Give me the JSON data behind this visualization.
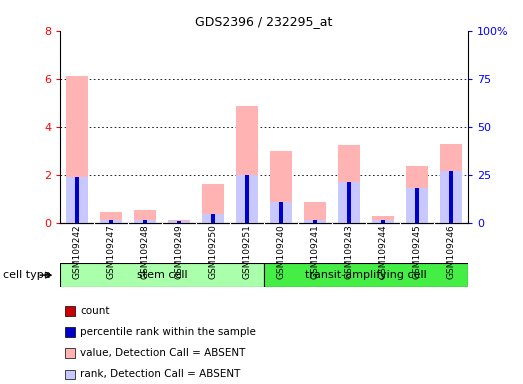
{
  "title": "GDS2396 / 232295_at",
  "samples": [
    "GSM109242",
    "GSM109247",
    "GSM109248",
    "GSM109249",
    "GSM109250",
    "GSM109251",
    "GSM109240",
    "GSM109241",
    "GSM109243",
    "GSM109244",
    "GSM109245",
    "GSM109246"
  ],
  "count_values": [
    0.07,
    0.0,
    0.0,
    0.0,
    0.0,
    0.07,
    0.07,
    0.04,
    0.07,
    0.0,
    0.0,
    0.07
  ],
  "percentile_values": [
    24.0,
    1.5,
    1.5,
    1.0,
    4.5,
    25.0,
    11.0,
    1.5,
    21.0,
    1.5,
    18.0,
    27.0
  ],
  "value_absent": [
    6.1,
    0.45,
    0.55,
    0.1,
    1.6,
    4.85,
    3.0,
    0.85,
    3.25,
    0.3,
    2.35,
    3.3
  ],
  "rank_absent": [
    24.0,
    1.5,
    1.5,
    1.0,
    4.5,
    25.0,
    11.0,
    1.5,
    21.0,
    1.5,
    18.0,
    27.0
  ],
  "ylim_left": [
    0,
    8
  ],
  "ylim_right": [
    0,
    100
  ],
  "yticks_left": [
    0,
    2,
    4,
    6,
    8
  ],
  "yticks_right": [
    0,
    25,
    50,
    75,
    100
  ],
  "ytick_labels_right": [
    "0",
    "25",
    "50",
    "75",
    "100%"
  ],
  "color_count": "#cc0000",
  "color_percentile": "#0000cc",
  "color_value_absent": "#ffb3b3",
  "color_rank_absent": "#c8c8ff",
  "stem_cell_color": "#aaffaa",
  "transit_cell_color": "#44ee44",
  "xlabel_area_color": "#cccccc"
}
